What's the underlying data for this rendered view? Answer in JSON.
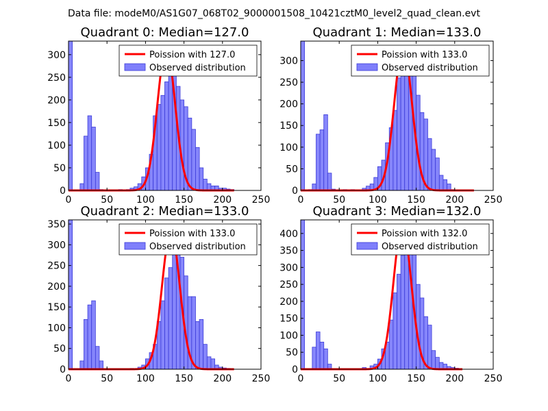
{
  "suptitle": "Data file: modeM0/AS1G07_068T02_9000001508_10421cztM0_level2_quad_clean.evt",
  "colors": {
    "bar_fill": "#7f7ffb",
    "bar_edge": "#3a3ad8",
    "poisson_line": "#ff0000"
  },
  "chart_data": [
    {
      "type": "bar",
      "title": "Quadrant 0: Median=127.0",
      "xlim": [
        0,
        250
      ],
      "ylim": [
        0,
        330
      ],
      "xticks": [
        "0",
        "50",
        "100",
        "150",
        "200",
        "250"
      ],
      "yticks": [
        "0",
        "50",
        "100",
        "150",
        "200",
        "250",
        "300"
      ],
      "ytick_values": [
        0,
        50,
        100,
        150,
        200,
        250,
        300
      ],
      "legend": {
        "position": "top-right",
        "poisson_label": "Poission with 127.0",
        "observed_label": "Observed distribution"
      },
      "bin_width": 5,
      "bin_starts": [
        0,
        15,
        20,
        25,
        30,
        35,
        40,
        45,
        65,
        75,
        80,
        85,
        90,
        95,
        100,
        105,
        110,
        115,
        120,
        125,
        130,
        135,
        140,
        145,
        150,
        155,
        160,
        165,
        170,
        175,
        180,
        185,
        190,
        195,
        200,
        205,
        210
      ],
      "counts": [
        330,
        15,
        120,
        165,
        140,
        40,
        2,
        0,
        2,
        2,
        5,
        8,
        15,
        30,
        50,
        80,
        165,
        190,
        210,
        240,
        275,
        270,
        230,
        200,
        185,
        160,
        135,
        95,
        50,
        25,
        15,
        10,
        10,
        5,
        5,
        3,
        2
      ],
      "poisson": {
        "mean": 127.0,
        "peak": 315,
        "sigma": 11.5,
        "x_start": 0,
        "x_end": 215
      }
    },
    {
      "type": "bar",
      "title": "Quadrant 1: Median=133.0",
      "xlim": [
        0,
        250
      ],
      "ylim": [
        0,
        345
      ],
      "xticks": [
        "0",
        "50",
        "100",
        "150",
        "200",
        "250"
      ],
      "yticks": [
        "0",
        "50",
        "100",
        "150",
        "200",
        "250",
        "300"
      ],
      "ytick_values": [
        0,
        50,
        100,
        150,
        200,
        250,
        300
      ],
      "legend": {
        "position": "top-right",
        "poisson_label": "Poission with 133.0",
        "observed_label": "Observed distribution"
      },
      "bin_width": 5,
      "bin_starts": [
        0,
        10,
        15,
        20,
        25,
        30,
        35,
        40,
        55,
        65,
        80,
        85,
        90,
        95,
        100,
        105,
        110,
        115,
        120,
        125,
        130,
        135,
        140,
        145,
        150,
        155,
        160,
        165,
        170,
        175,
        180,
        185,
        190,
        195
      ],
      "counts": [
        345,
        2,
        15,
        130,
        140,
        175,
        40,
        3,
        2,
        2,
        5,
        10,
        15,
        30,
        55,
        70,
        110,
        145,
        185,
        260,
        285,
        310,
        320,
        265,
        220,
        180,
        165,
        120,
        95,
        75,
        35,
        25,
        15,
        2
      ],
      "poisson": {
        "mean": 133.0,
        "peak": 333,
        "sigma": 11.5,
        "x_start": 0,
        "x_end": 225
      }
    },
    {
      "type": "bar",
      "title": "Quadrant 2: Median=133.0",
      "xlim": [
        0,
        250
      ],
      "ylim": [
        0,
        360
      ],
      "xticks": [
        "0",
        "50",
        "100",
        "150",
        "200",
        "250"
      ],
      "yticks": [
        "0",
        "50",
        "100",
        "150",
        "200",
        "250",
        "300",
        "350"
      ],
      "ytick_values": [
        0,
        50,
        100,
        150,
        200,
        250,
        300,
        350
      ],
      "legend": {
        "position": "top-right",
        "poisson_label": "Poission with 133.0",
        "observed_label": "Observed distribution"
      },
      "bin_width": 5,
      "bin_starts": [
        0,
        15,
        20,
        25,
        30,
        35,
        40,
        80,
        90,
        95,
        100,
        105,
        110,
        115,
        120,
        125,
        130,
        135,
        140,
        145,
        150,
        155,
        160,
        165,
        170,
        175,
        180,
        185,
        190,
        195,
        200,
        205
      ],
      "counts": [
        360,
        20,
        120,
        155,
        165,
        55,
        20,
        2,
        5,
        10,
        25,
        40,
        60,
        115,
        165,
        220,
        245,
        330,
        320,
        270,
        225,
        175,
        175,
        115,
        120,
        60,
        30,
        25,
        10,
        5,
        3,
        2
      ],
      "poisson": {
        "mean": 133.0,
        "peak": 333,
        "sigma": 11.5,
        "x_start": 0,
        "x_end": 215
      }
    },
    {
      "type": "bar",
      "title": "Quadrant 3: Median=132.0",
      "xlim": [
        0,
        250
      ],
      "ylim": [
        0,
        440
      ],
      "xticks": [
        "0",
        "50",
        "100",
        "150",
        "200",
        "250"
      ],
      "yticks": [
        "0",
        "50",
        "100",
        "150",
        "200",
        "250",
        "300",
        "350",
        "400"
      ],
      "ytick_values": [
        0,
        50,
        100,
        150,
        200,
        250,
        300,
        350,
        400
      ],
      "legend": {
        "position": "top-right",
        "poisson_label": "Poission with 132.0",
        "observed_label": "Observed distribution"
      },
      "bin_width": 5,
      "bin_starts": [
        0,
        15,
        20,
        25,
        30,
        35,
        80,
        90,
        95,
        100,
        105,
        110,
        115,
        120,
        125,
        130,
        135,
        140,
        145,
        150,
        155,
        160,
        165,
        170,
        175,
        180,
        185,
        190,
        195,
        200
      ],
      "counts": [
        440,
        65,
        110,
        80,
        60,
        15,
        5,
        10,
        15,
        30,
        60,
        80,
        145,
        225,
        280,
        335,
        360,
        415,
        380,
        250,
        210,
        155,
        130,
        55,
        35,
        20,
        15,
        8,
        5,
        3
      ],
      "poisson": {
        "mean": 132.0,
        "peak": 425,
        "sigma": 11.5,
        "x_start": 0,
        "x_end": 210
      }
    }
  ]
}
